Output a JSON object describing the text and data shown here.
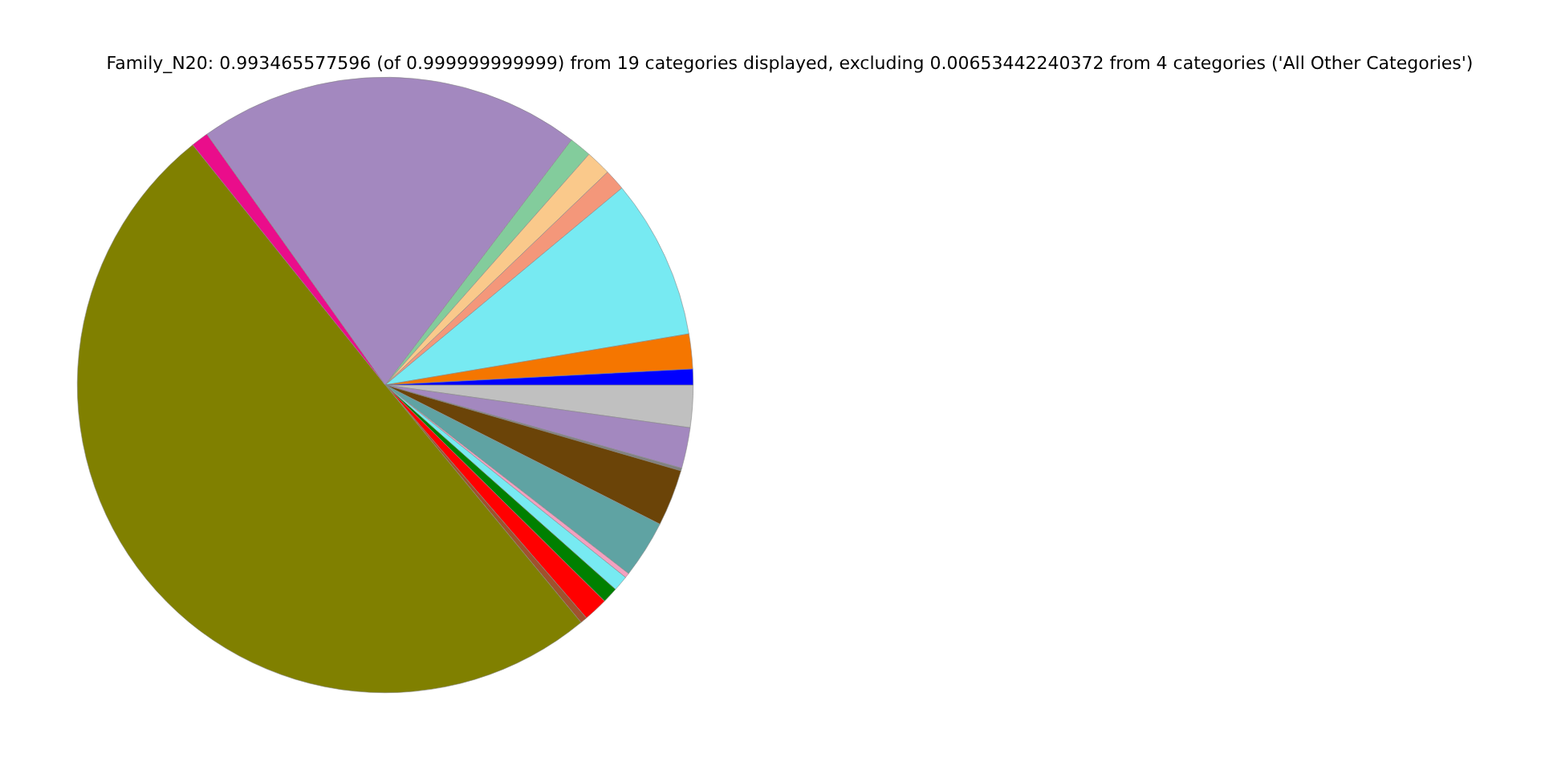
{
  "chart_data": {
    "type": "pie",
    "title": "Family_N20: 0.993465577596 (of 0.999999999999) from 19 categories displayed, excluding 0.00653442240372 from 4 categories ('All Other Categories')",
    "categories": [
      null,
      null,
      null,
      null,
      null,
      null,
      null,
      null,
      null,
      null,
      null,
      null,
      null,
      null,
      null,
      null,
      null,
      null,
      null
    ],
    "values": [
      2.22,
      2.14,
      0.14,
      2.97,
      3.03,
      0.25,
      0.81,
      0.83,
      1.28,
      0.36,
      50.22,
      0.92,
      20.17,
      1.17,
      1.33,
      1.11,
      8.39,
      1.83,
      0.83
    ],
    "colors": [
      "#c0c0c0",
      "#a388bf",
      "#808080",
      "#6b4408",
      "#5fa3a3",
      "#f4a0c0",
      "#77eaf2",
      "#008000",
      "#ff0000",
      "#a0522d",
      "#808000",
      "#ea0d8b",
      "#a388bf",
      "#83cc9c",
      "#fac98b",
      "#f4977a",
      "#77eaf2",
      "#f57600",
      "#0000ff"
    ],
    "legend": false
  }
}
